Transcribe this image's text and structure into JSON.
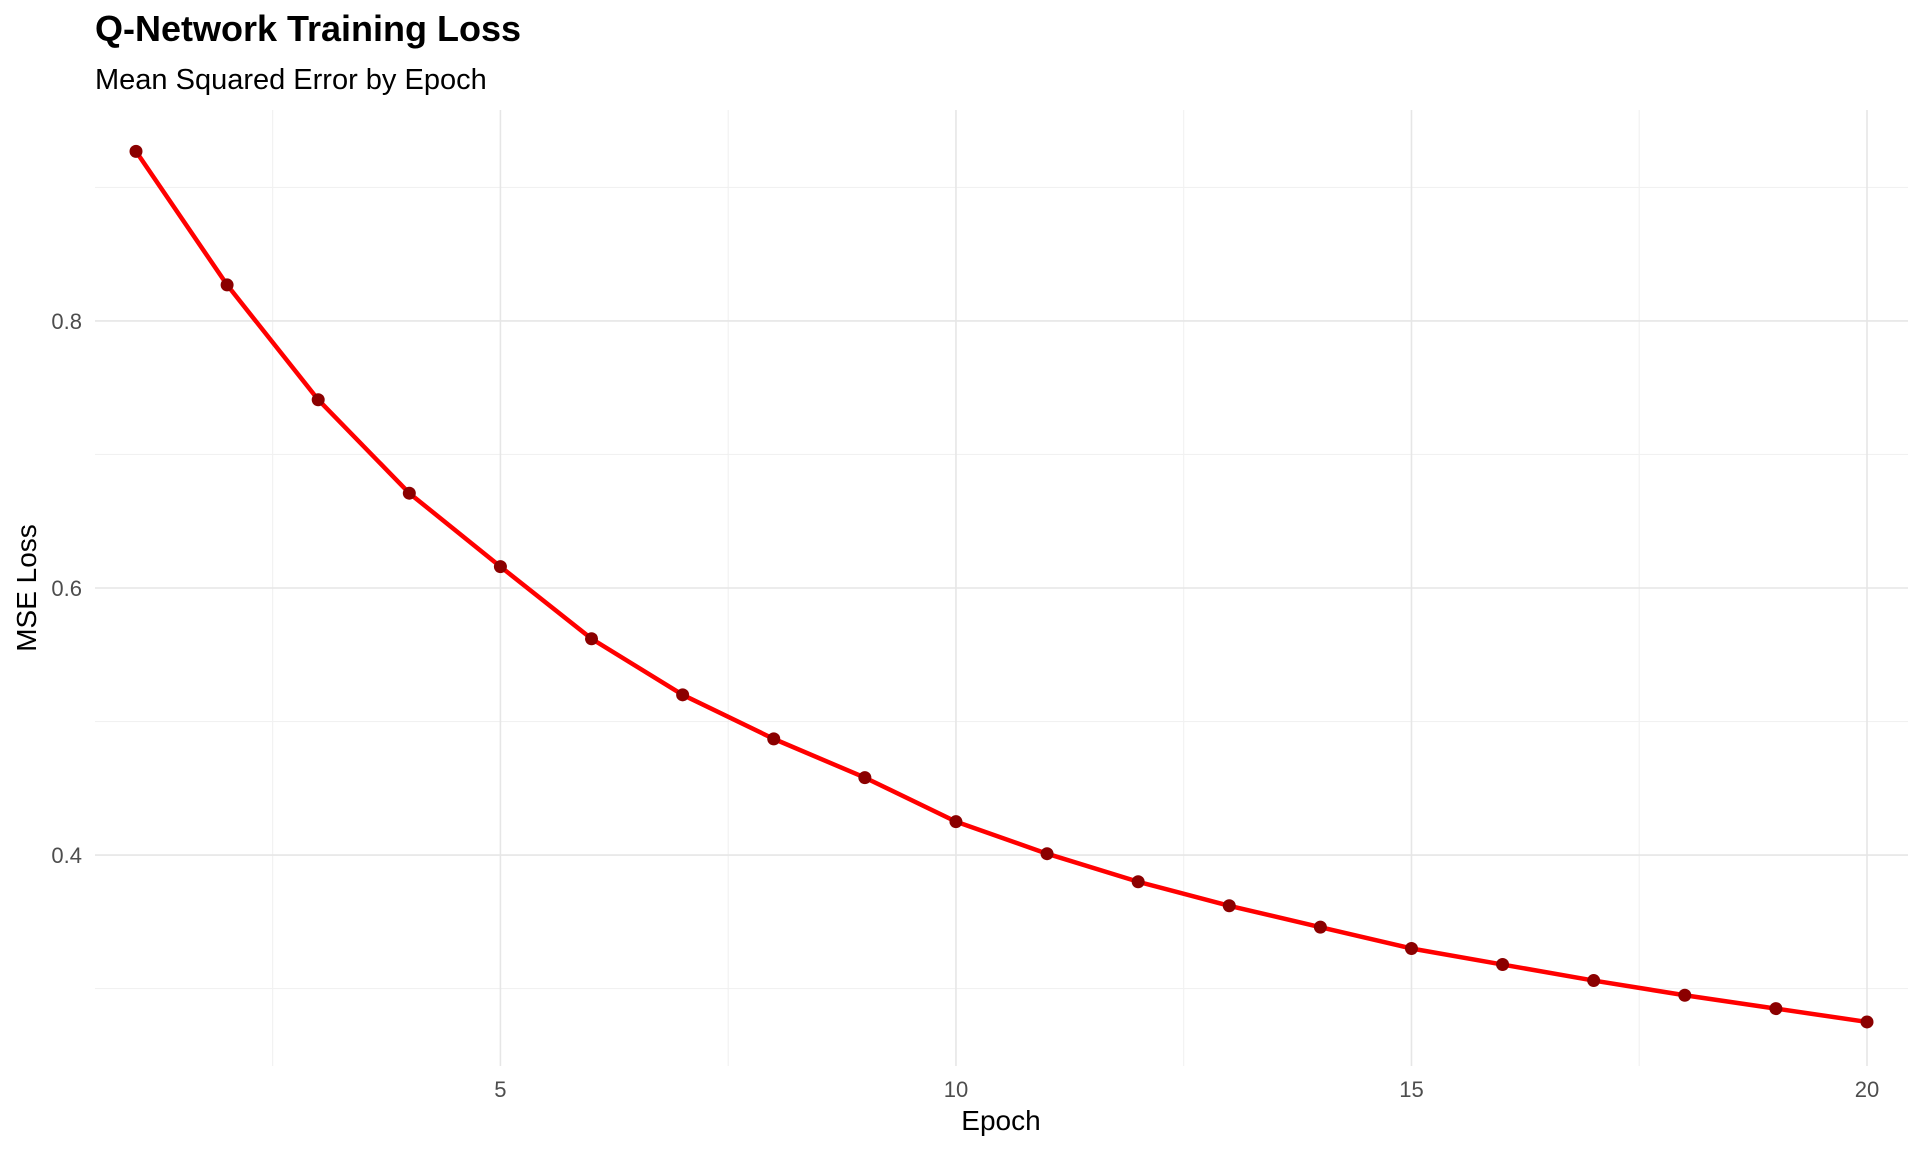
{
  "chart_data": {
    "type": "line",
    "title": "Q-Network Training Loss",
    "subtitle": "Mean Squared Error by Epoch",
    "xlabel": "Epoch",
    "ylabel": "MSE Loss",
    "x": [
      1,
      2,
      3,
      4,
      5,
      6,
      7,
      8,
      9,
      10,
      11,
      12,
      13,
      14,
      15,
      16,
      17,
      18,
      19,
      20
    ],
    "series": [
      {
        "values": [
          0.927,
          0.827,
          0.741,
          0.671,
          0.616,
          0.562,
          0.52,
          0.487,
          0.458,
          0.425,
          0.401,
          0.38,
          0.362,
          0.346,
          0.33,
          0.318,
          0.306,
          0.295,
          0.285,
          0.275
        ],
        "line_color": "#ff0000",
        "point_color": "#8b0000"
      }
    ],
    "xlim": [
      0.55,
      20.45
    ],
    "ylim": [
      0.242,
      0.958
    ],
    "x_ticks": [
      5,
      10,
      15,
      20
    ],
    "x_tick_labels": [
      "5",
      "10",
      "15",
      "20"
    ],
    "x_minor": [
      2.5,
      7.5,
      12.5,
      17.5
    ],
    "y_ticks": [
      0.4,
      0.6,
      0.8
    ],
    "y_tick_labels": [
      "0.4",
      "0.6",
      "0.8"
    ],
    "y_minor": [
      0.3,
      0.5,
      0.7,
      0.9
    ],
    "grid": true,
    "legend": "none"
  }
}
